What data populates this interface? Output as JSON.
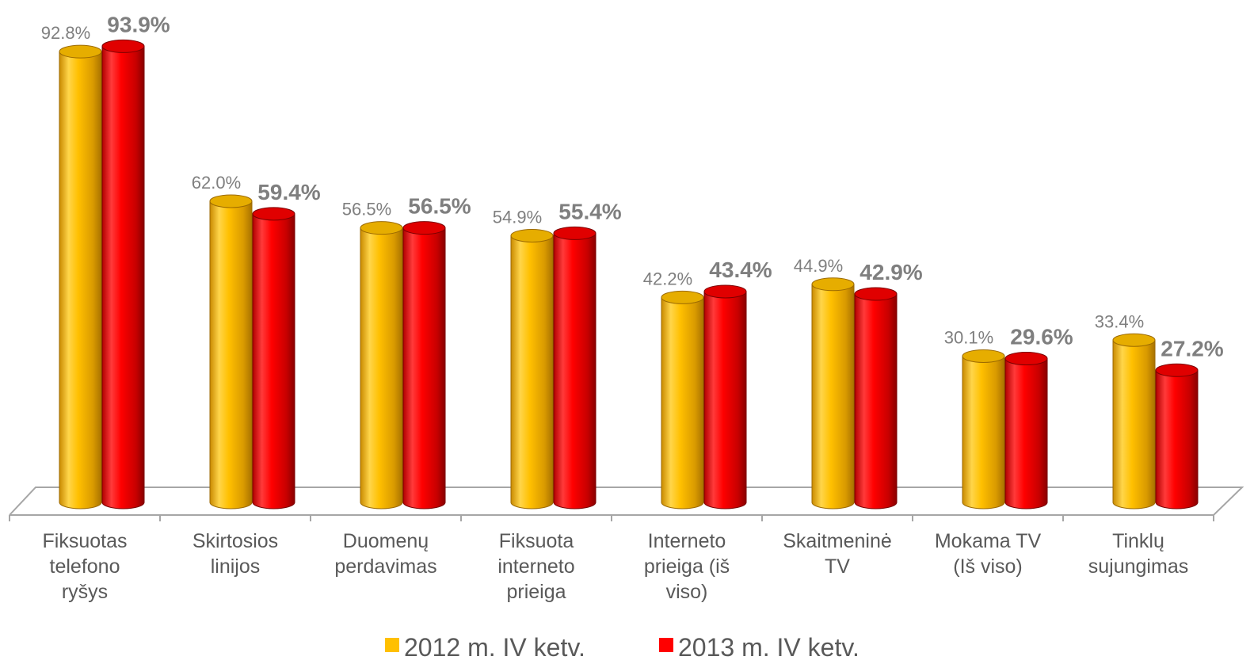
{
  "chart_data": {
    "type": "bar",
    "categories": [
      [
        "Fiksuotas",
        "telefono",
        "ryšys"
      ],
      [
        "Skirtosios",
        "linijos"
      ],
      [
        "Duomenų",
        "perdavimas"
      ],
      [
        "Fiksuota",
        "interneto",
        "prieiga"
      ],
      [
        "Interneto",
        "prieiga (iš",
        "viso)"
      ],
      [
        "Skaitmeninė",
        "TV"
      ],
      [
        "Mokama TV",
        "(Iš viso)"
      ],
      [
        "Tinklų",
        "sujungimas"
      ]
    ],
    "series": [
      {
        "name": "2012 m. IV ketv.",
        "color": "#ffc000",
        "values": [
          92.8,
          62.0,
          56.5,
          54.9,
          42.2,
          44.9,
          30.1,
          33.4
        ],
        "labels": [
          "92.8%",
          "62.0%",
          "56.5%",
          "54.9%",
          "42.2%",
          "44.9%",
          "30.1%",
          "33.4%"
        ]
      },
      {
        "name": "2013 m. IV ketv.",
        "color": "#ff0000",
        "values": [
          93.9,
          59.4,
          56.5,
          55.4,
          43.4,
          42.9,
          29.6,
          27.2
        ],
        "labels": [
          "93.9%",
          "59.4%",
          "56.5%",
          "55.4%",
          "43.4%",
          "42.9%",
          "29.6%",
          "27.2%"
        ]
      }
    ],
    "title": "",
    "xlabel": "",
    "ylabel": "",
    "ylim": [
      0,
      100
    ],
    "grid": false,
    "legend_position": "bottom"
  }
}
